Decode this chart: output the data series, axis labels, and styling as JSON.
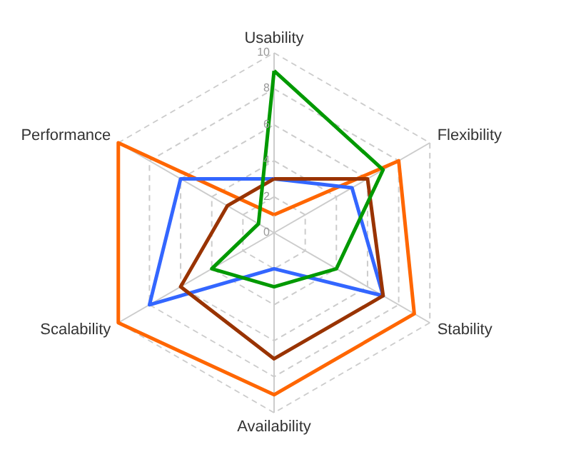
{
  "chart_data": {
    "type": "radar",
    "categories": [
      "Usability",
      "Flexibility",
      "Stability",
      "Availability",
      "Scalability",
      "Performance"
    ],
    "series": [
      {
        "color": "#ff6600",
        "values": [
          1,
          8,
          9,
          9,
          10,
          10
        ]
      },
      {
        "color": "#3366ff",
        "values": [
          3,
          5,
          7,
          2,
          8,
          6
        ]
      },
      {
        "color": "#993300",
        "values": [
          3,
          6,
          7,
          7,
          6,
          3
        ]
      },
      {
        "color": "#009900",
        "values": [
          9,
          7,
          4,
          3,
          4,
          1
        ]
      }
    ],
    "ylim": [
      0,
      10
    ],
    "yticks": [
      0,
      2,
      4,
      6,
      8,
      10
    ],
    "grid": true
  }
}
